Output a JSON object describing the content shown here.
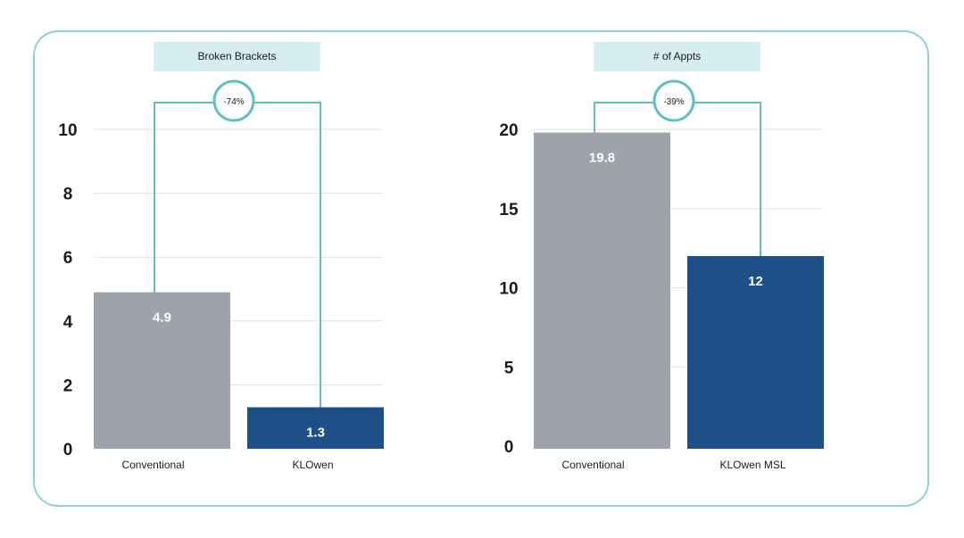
{
  "colors": {
    "frame": "#8fd0d6",
    "title_bg": "#d6eef1",
    "connector": "#5fbfc6",
    "grid": "#e2e2e2",
    "conventional": "#9ea2aa",
    "klowen": "#1e4f87"
  },
  "chart_data": [
    {
      "type": "bar",
      "title": "Broken Brackets",
      "categories": [
        "Conventional",
        "KLOwen"
      ],
      "values": [
        4.9,
        1.3
      ],
      "value_labels": [
        "4.9",
        "1.3"
      ],
      "yticks": [
        0,
        2,
        4,
        6,
        8,
        10
      ],
      "ylim": [
        0,
        10
      ],
      "change_label": "-74%",
      "grid": true
    },
    {
      "type": "bar",
      "title": "# of Appts",
      "categories": [
        "Conventional",
        "KLOwen MSL"
      ],
      "values": [
        19.8,
        12
      ],
      "value_labels": [
        "19.8",
        "12"
      ],
      "yticks": [
        0,
        5,
        10,
        15,
        20
      ],
      "ylim": [
        0,
        20
      ],
      "change_label": "-39%",
      "grid": true
    }
  ]
}
